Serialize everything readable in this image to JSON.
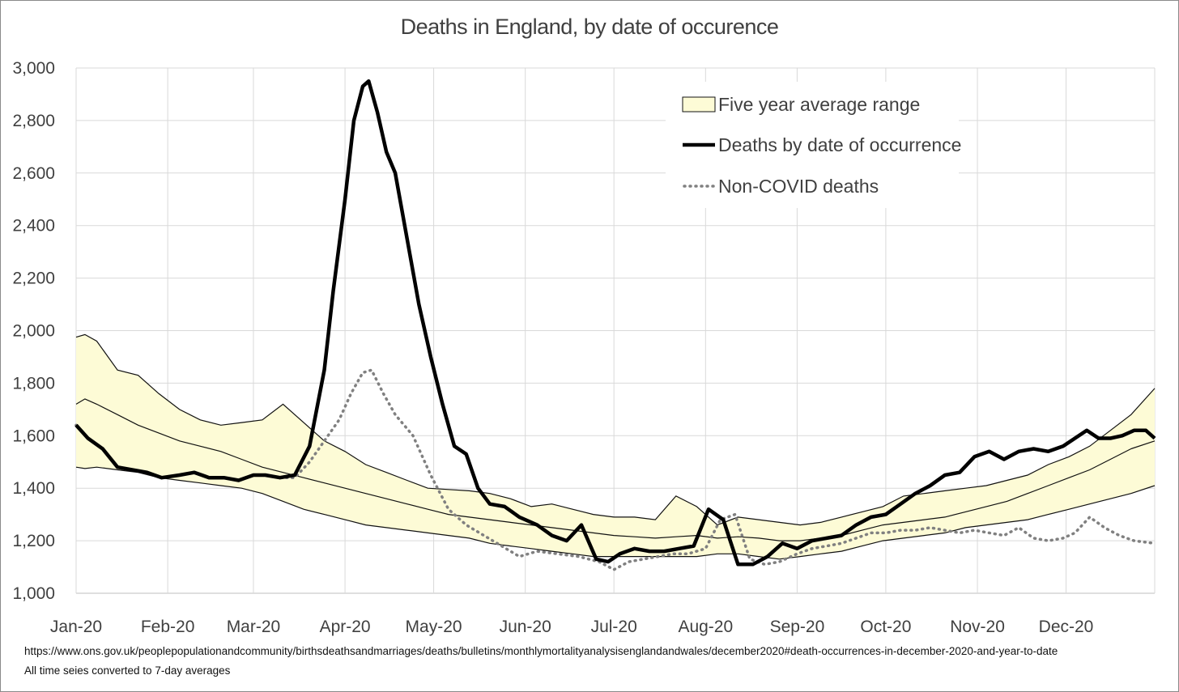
{
  "title": "Deaths in England, by date of occurence",
  "footnotes": {
    "source": "https://www.ons.gov.uk/peoplepopulationandcommunity/birthsdeathsandmarriages/deaths/bulletins/monthlymortalityanalysisenglandandwales/december2020#death-occurrences-in-december-2020-and-year-to-date",
    "note": "All time seies converted to 7-day averages"
  },
  "colors": {
    "band_fill": "#fdfbd6",
    "band_edge": "#111111",
    "deaths_line": "#000000",
    "non_covid_line": "#808080",
    "grid": "#d9d9d9"
  },
  "chart_data": {
    "type": "line",
    "title": "Deaths in England, by date of occurence",
    "xlabel": "",
    "ylabel": "",
    "ylim": [
      1000,
      3000
    ],
    "xlim": [
      "2020-01-01",
      "2020-12-31"
    ],
    "yticks": [
      "1,000",
      "1,200",
      "1,400",
      "1,600",
      "1,800",
      "2,000",
      "2,200",
      "2,400",
      "2,600",
      "2,800",
      "3,000"
    ],
    "xticks": [
      {
        "label": "Jan-20",
        "date": "2020-01-01"
      },
      {
        "label": "Feb-20",
        "date": "2020-02-01"
      },
      {
        "label": "Mar-20",
        "date": "2020-03-01"
      },
      {
        "label": "Apr-20",
        "date": "2020-04-01"
      },
      {
        "label": "May-20",
        "date": "2020-05-01"
      },
      {
        "label": "Jun-20",
        "date": "2020-06-01"
      },
      {
        "label": "Jul-20",
        "date": "2020-07-01"
      },
      {
        "label": "Aug-20",
        "date": "2020-08-01"
      },
      {
        "label": "Sep-20",
        "date": "2020-09-01"
      },
      {
        "label": "Oct-20",
        "date": "2020-10-01"
      },
      {
        "label": "Nov-20",
        "date": "2020-11-01"
      },
      {
        "label": "Dec-20",
        "date": "2020-12-01"
      }
    ],
    "grid": true,
    "legend_position": "top-right",
    "legend": [
      "Five year average range",
      "Deaths by date of occurrence",
      "Non-COVID deaths"
    ],
    "series": [
      {
        "name": "Five year average range",
        "kind": "band",
        "x": [
          "2020-01-01",
          "2020-01-04",
          "2020-01-08",
          "2020-01-15",
          "2020-01-22",
          "2020-01-29",
          "2020-02-05",
          "2020-02-12",
          "2020-02-19",
          "2020-02-26",
          "2020-03-04",
          "2020-03-11",
          "2020-03-18",
          "2020-03-25",
          "2020-04-01",
          "2020-04-08",
          "2020-04-15",
          "2020-04-22",
          "2020-04-29",
          "2020-05-06",
          "2020-05-13",
          "2020-05-20",
          "2020-05-27",
          "2020-06-03",
          "2020-06-10",
          "2020-06-17",
          "2020-06-24",
          "2020-07-01",
          "2020-07-08",
          "2020-07-15",
          "2020-07-22",
          "2020-07-29",
          "2020-08-05",
          "2020-08-12",
          "2020-08-19",
          "2020-08-26",
          "2020-09-02",
          "2020-09-09",
          "2020-09-16",
          "2020-09-23",
          "2020-09-30",
          "2020-10-07",
          "2020-10-14",
          "2020-10-21",
          "2020-10-28",
          "2020-11-04",
          "2020-11-11",
          "2020-11-18",
          "2020-11-25",
          "2020-12-02",
          "2020-12-09",
          "2020-12-16",
          "2020-12-23",
          "2020-12-31"
        ],
        "upper": [
          1975,
          1985,
          1960,
          1850,
          1830,
          1760,
          1700,
          1660,
          1640,
          1650,
          1660,
          1720,
          1650,
          1580,
          1540,
          1490,
          1460,
          1430,
          1400,
          1395,
          1390,
          1380,
          1360,
          1330,
          1340,
          1320,
          1300,
          1290,
          1290,
          1280,
          1370,
          1330,
          1260,
          1290,
          1280,
          1270,
          1260,
          1270,
          1290,
          1310,
          1330,
          1370,
          1380,
          1390,
          1400,
          1410,
          1430,
          1450,
          1490,
          1520,
          1560,
          1620,
          1680,
          1780
        ],
        "mid": [
          1720,
          1740,
          1720,
          1680,
          1640,
          1610,
          1580,
          1560,
          1540,
          1510,
          1480,
          1460,
          1440,
          1420,
          1400,
          1380,
          1360,
          1340,
          1320,
          1300,
          1290,
          1280,
          1270,
          1260,
          1250,
          1240,
          1230,
          1220,
          1215,
          1210,
          1215,
          1220,
          1210,
          1215,
          1210,
          1200,
          1200,
          1210,
          1220,
          1240,
          1260,
          1270,
          1280,
          1290,
          1310,
          1330,
          1350,
          1380,
          1410,
          1440,
          1470,
          1510,
          1550,
          1580
        ],
        "lower": [
          1480,
          1475,
          1480,
          1470,
          1460,
          1440,
          1430,
          1420,
          1410,
          1400,
          1380,
          1350,
          1320,
          1300,
          1280,
          1260,
          1250,
          1240,
          1230,
          1220,
          1210,
          1190,
          1180,
          1170,
          1160,
          1150,
          1140,
          1140,
          1140,
          1140,
          1140,
          1140,
          1150,
          1150,
          1140,
          1130,
          1140,
          1150,
          1160,
          1180,
          1200,
          1210,
          1220,
          1230,
          1250,
          1260,
          1270,
          1280,
          1300,
          1320,
          1340,
          1360,
          1380,
          1410
        ]
      },
      {
        "name": "Deaths by date of occurrence",
        "kind": "line",
        "x": [
          "2020-01-01",
          "2020-01-05",
          "2020-01-10",
          "2020-01-15",
          "2020-01-20",
          "2020-01-25",
          "2020-01-30",
          "2020-02-05",
          "2020-02-10",
          "2020-02-15",
          "2020-02-20",
          "2020-02-25",
          "2020-03-01",
          "2020-03-05",
          "2020-03-10",
          "2020-03-15",
          "2020-03-20",
          "2020-03-25",
          "2020-03-28",
          "2020-04-01",
          "2020-04-04",
          "2020-04-07",
          "2020-04-09",
          "2020-04-12",
          "2020-04-15",
          "2020-04-18",
          "2020-04-22",
          "2020-04-26",
          "2020-04-30",
          "2020-05-04",
          "2020-05-08",
          "2020-05-12",
          "2020-05-16",
          "2020-05-20",
          "2020-05-25",
          "2020-05-30",
          "2020-06-05",
          "2020-06-10",
          "2020-06-15",
          "2020-06-20",
          "2020-06-25",
          "2020-06-29",
          "2020-07-03",
          "2020-07-08",
          "2020-07-13",
          "2020-07-18",
          "2020-07-23",
          "2020-07-28",
          "2020-08-02",
          "2020-08-07",
          "2020-08-12",
          "2020-08-17",
          "2020-08-22",
          "2020-08-27",
          "2020-09-01",
          "2020-09-06",
          "2020-09-11",
          "2020-09-16",
          "2020-09-21",
          "2020-09-26",
          "2020-10-01",
          "2020-10-06",
          "2020-10-11",
          "2020-10-16",
          "2020-10-21",
          "2020-10-26",
          "2020-10-31",
          "2020-11-05",
          "2020-11-10",
          "2020-11-15",
          "2020-11-20",
          "2020-11-25",
          "2020-11-30",
          "2020-12-04",
          "2020-12-08",
          "2020-12-12",
          "2020-12-16",
          "2020-12-20",
          "2020-12-24",
          "2020-12-28",
          "2020-12-31"
        ],
        "y": [
          1640,
          1590,
          1550,
          1480,
          1470,
          1460,
          1440,
          1450,
          1460,
          1440,
          1440,
          1430,
          1450,
          1450,
          1440,
          1450,
          1560,
          1850,
          2150,
          2500,
          2800,
          2930,
          2950,
          2830,
          2680,
          2600,
          2350,
          2100,
          1900,
          1720,
          1560,
          1530,
          1400,
          1340,
          1330,
          1290,
          1260,
          1220,
          1200,
          1260,
          1130,
          1120,
          1150,
          1170,
          1160,
          1160,
          1170,
          1180,
          1320,
          1280,
          1110,
          1110,
          1140,
          1190,
          1170,
          1200,
          1210,
          1220,
          1260,
          1290,
          1300,
          1340,
          1380,
          1410,
          1450,
          1460,
          1520,
          1540,
          1510,
          1540,
          1550,
          1540,
          1560,
          1590,
          1620,
          1590,
          1590,
          1600,
          1620,
          1620,
          1590
        ]
      },
      {
        "name": "Non-COVID deaths",
        "kind": "dotted",
        "x": [
          "2020-01-01",
          "2020-01-05",
          "2020-01-10",
          "2020-01-15",
          "2020-01-20",
          "2020-01-25",
          "2020-01-30",
          "2020-02-05",
          "2020-02-10",
          "2020-02-15",
          "2020-02-20",
          "2020-02-25",
          "2020-03-01",
          "2020-03-05",
          "2020-03-10",
          "2020-03-15",
          "2020-03-20",
          "2020-03-25",
          "2020-03-30",
          "2020-04-03",
          "2020-04-07",
          "2020-04-10",
          "2020-04-14",
          "2020-04-18",
          "2020-04-24",
          "2020-04-30",
          "2020-05-06",
          "2020-05-12",
          "2020-05-18",
          "2020-05-24",
          "2020-05-30",
          "2020-06-05",
          "2020-06-12",
          "2020-06-19",
          "2020-06-26",
          "2020-07-01",
          "2020-07-06",
          "2020-07-11",
          "2020-07-16",
          "2020-07-21",
          "2020-07-26",
          "2020-08-01",
          "2020-08-06",
          "2020-08-11",
          "2020-08-16",
          "2020-08-21",
          "2020-08-26",
          "2020-09-01",
          "2020-09-06",
          "2020-09-11",
          "2020-09-16",
          "2020-09-21",
          "2020-09-26",
          "2020-10-01",
          "2020-10-06",
          "2020-10-11",
          "2020-10-16",
          "2020-10-21",
          "2020-10-26",
          "2020-10-31",
          "2020-11-05",
          "2020-11-10",
          "2020-11-15",
          "2020-11-20",
          "2020-11-25",
          "2020-11-30",
          "2020-12-04",
          "2020-12-09",
          "2020-12-14",
          "2020-12-19",
          "2020-12-24",
          "2020-12-31"
        ],
        "y": [
          1640,
          1590,
          1550,
          1480,
          1470,
          1460,
          1440,
          1450,
          1460,
          1440,
          1440,
          1430,
          1450,
          1450,
          1440,
          1440,
          1500,
          1580,
          1660,
          1760,
          1840,
          1850,
          1760,
          1680,
          1600,
          1450,
          1320,
          1260,
          1220,
          1180,
          1140,
          1160,
          1150,
          1140,
          1120,
          1090,
          1120,
          1130,
          1140,
          1150,
          1150,
          1170,
          1280,
          1300,
          1130,
          1110,
          1120,
          1150,
          1170,
          1180,
          1190,
          1210,
          1230,
          1230,
          1240,
          1240,
          1250,
          1240,
          1230,
          1240,
          1230,
          1220,
          1250,
          1210,
          1200,
          1210,
          1230,
          1290,
          1250,
          1220,
          1200,
          1190
        ]
      }
    ]
  }
}
